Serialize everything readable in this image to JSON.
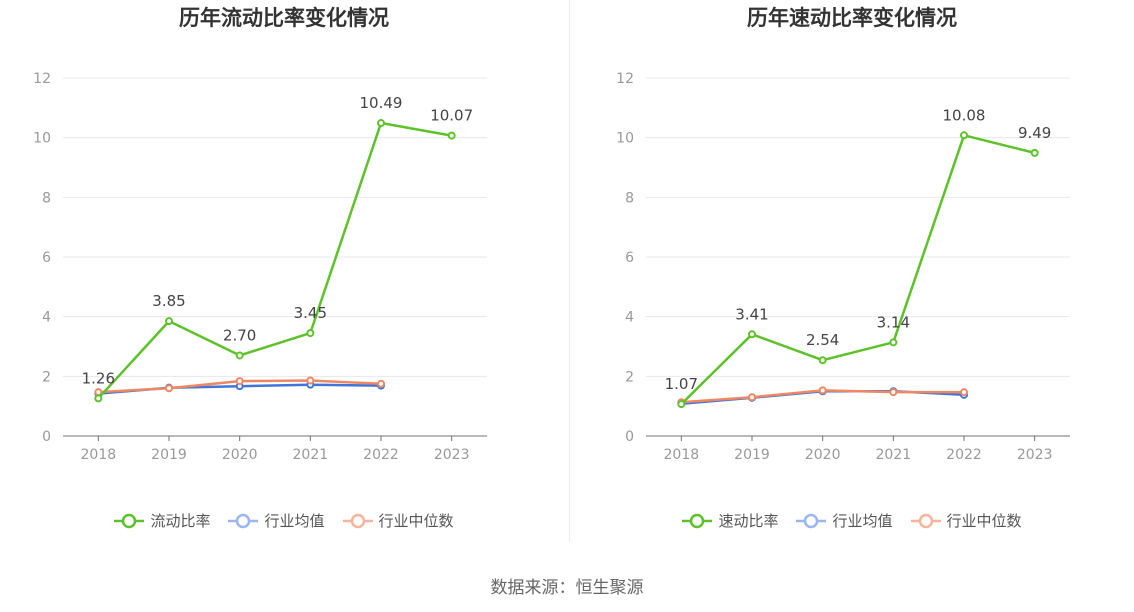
{
  "chart_data": [
    {
      "type": "line",
      "title": "历年流动比率变化情况",
      "categories": [
        "2018",
        "2019",
        "2020",
        "2021",
        "2022",
        "2023"
      ],
      "ylim": [
        0,
        12
      ],
      "yticks": [
        0,
        2,
        4,
        6,
        8,
        10,
        12
      ],
      "grid": true,
      "legend_position": "bottom",
      "series": [
        {
          "name": "流动比率",
          "color": "#5dc22a",
          "values": [
            1.26,
            3.85,
            2.7,
            3.45,
            10.49,
            10.07
          ],
          "labels": [
            "1.26",
            "3.85",
            "2.70",
            "3.45",
            "10.49",
            "10.07"
          ]
        },
        {
          "name": "行业均值",
          "color": "#3f75d8",
          "values": [
            1.42,
            1.62,
            1.67,
            1.72,
            1.69,
            null
          ]
        },
        {
          "name": "行业中位数",
          "color": "#ee8862",
          "values": [
            1.47,
            1.6,
            1.84,
            1.86,
            1.75,
            null
          ]
        }
      ]
    },
    {
      "type": "line",
      "title": "历年速动比率变化情况",
      "categories": [
        "2018",
        "2019",
        "2020",
        "2021",
        "2022",
        "2023"
      ],
      "ylim": [
        0,
        12
      ],
      "yticks": [
        0,
        2,
        4,
        6,
        8,
        10,
        12
      ],
      "grid": true,
      "legend_position": "bottom",
      "series": [
        {
          "name": "速动比率",
          "color": "#5dc22a",
          "values": [
            1.07,
            3.41,
            2.54,
            3.14,
            10.08,
            9.49
          ],
          "labels": [
            "1.07",
            "3.41",
            "2.54",
            "3.14",
            "10.08",
            "9.49"
          ]
        },
        {
          "name": "行业均值",
          "color": "#3f75d8",
          "values": [
            1.08,
            1.28,
            1.5,
            1.5,
            1.38,
            null
          ]
        },
        {
          "name": "行业中位数",
          "color": "#ee8862",
          "values": [
            1.13,
            1.3,
            1.53,
            1.47,
            1.47,
            null
          ]
        }
      ]
    }
  ],
  "legend_colors": {
    "ratio": "#5dc22a",
    "mean": "#9ab6ee",
    "median": "#f7b49d"
  },
  "footer": "数据来源：恒生聚源"
}
